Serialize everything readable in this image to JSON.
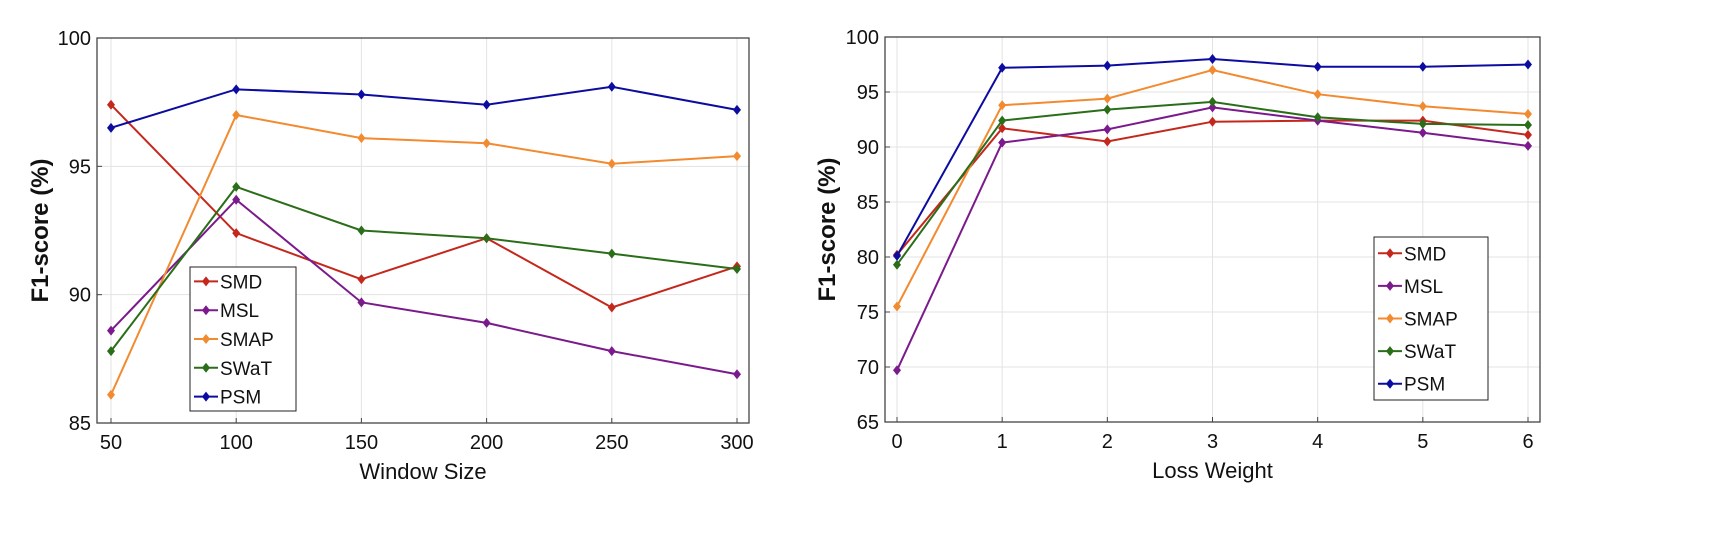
{
  "colors": {
    "SMD": "#c4281c",
    "MSL": "#7b1a8c",
    "SMAP": "#f28a30",
    "SWaT": "#2a6e1a",
    "PSM": "#0c0ca0"
  },
  "chart_data": [
    {
      "type": "line",
      "title": "",
      "xlabel": "Window Size",
      "ylabel": "F1-score (%)",
      "x": [
        50,
        100,
        150,
        200,
        250,
        300
      ],
      "xticks": [
        50,
        100,
        150,
        200,
        250,
        300
      ],
      "yticks": [
        85,
        90,
        95,
        100
      ],
      "ylim": [
        85,
        100
      ],
      "xlim": [
        45,
        305
      ],
      "grid": true,
      "legend_position": "bottom-left",
      "series": [
        {
          "name": "SMD",
          "values": [
            97.4,
            92.4,
            90.6,
            92.2,
            89.5,
            91.1
          ]
        },
        {
          "name": "MSL",
          "values": [
            88.6,
            93.7,
            89.7,
            88.9,
            87.8,
            86.9
          ]
        },
        {
          "name": "SMAP",
          "values": [
            86.1,
            97.0,
            96.1,
            95.9,
            95.1,
            95.4
          ]
        },
        {
          "name": "SWaT",
          "values": [
            87.8,
            94.2,
            92.5,
            92.2,
            91.6,
            91.0
          ]
        },
        {
          "name": "PSM",
          "values": [
            96.5,
            98.0,
            97.8,
            97.4,
            98.1,
            97.2
          ]
        }
      ]
    },
    {
      "type": "line",
      "title": "",
      "xlabel": "Loss Weight",
      "ylabel": "F1-score (%)",
      "x": [
        0,
        1,
        2,
        3,
        4,
        5,
        6
      ],
      "xticks": [
        0,
        1,
        2,
        3,
        4,
        5,
        6
      ],
      "yticks": [
        65,
        70,
        75,
        80,
        85,
        90,
        95,
        100
      ],
      "ylim": [
        65,
        100
      ],
      "xlim": [
        -0.1,
        6.1
      ],
      "grid": true,
      "legend_position": "bottom-right",
      "series": [
        {
          "name": "SMD",
          "values": [
            80.2,
            91.7,
            90.5,
            92.3,
            92.4,
            92.4,
            91.1
          ]
        },
        {
          "name": "MSL",
          "values": [
            69.7,
            90.4,
            91.6,
            93.6,
            92.4,
            91.3,
            90.1
          ]
        },
        {
          "name": "SMAP",
          "values": [
            75.5,
            93.8,
            94.4,
            97.0,
            94.8,
            93.7,
            93.0
          ]
        },
        {
          "name": "SWaT",
          "values": [
            79.3,
            92.4,
            93.4,
            94.1,
            92.7,
            92.1,
            92.0
          ]
        },
        {
          "name": "PSM",
          "values": [
            80.1,
            97.2,
            97.4,
            98.0,
            97.3,
            97.3,
            97.5
          ]
        }
      ]
    }
  ]
}
